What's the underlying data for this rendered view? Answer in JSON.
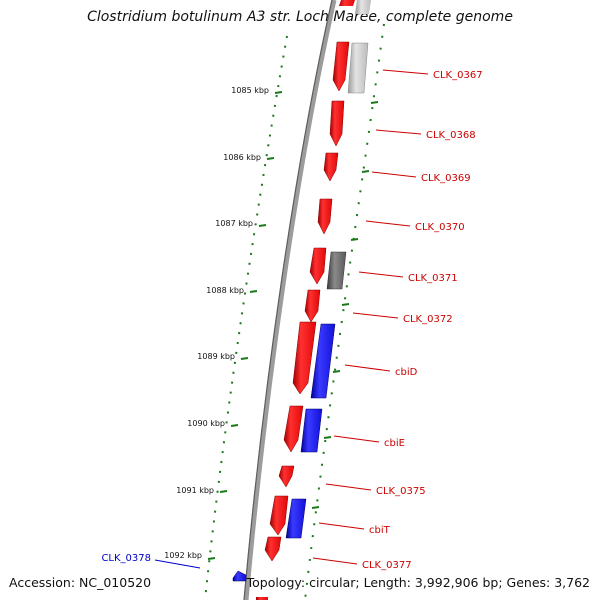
{
  "title": "Clostridium botulinum A3 str. Loch Maree, complete genome",
  "footer": {
    "accession": "Accession: NC_010520",
    "topology": "Topology: circular; Length: 3,992,906 bp; Genes: 3,762"
  },
  "colors": {
    "backbone": "#8a8a8a",
    "tick": "#1a7a1a",
    "forward_gene": "#e81010",
    "reverse_gene": "#1414e0",
    "pseudo_gene_light": "#c4c4c4",
    "pseudo_gene_dark": "#6a6a6a",
    "forward_label": "#cc0000",
    "reverse_label": "#0000cc"
  },
  "ruler": {
    "ticks": [
      {
        "kbp": 1085,
        "label": "1085 kbp"
      },
      {
        "kbp": 1086,
        "label": "1086 kbp"
      },
      {
        "kbp": 1087,
        "label": "1087 kbp"
      },
      {
        "kbp": 1088,
        "label": "1088 kbp"
      },
      {
        "kbp": 1089,
        "label": "1089 kbp"
      },
      {
        "kbp": 1090,
        "label": "1090 kbp"
      },
      {
        "kbp": 1091,
        "label": "1091 kbp"
      },
      {
        "kbp": 1092,
        "label": "1092 kbp"
      }
    ]
  },
  "genes": [
    {
      "name": "CLK_0367",
      "strand": "+"
    },
    {
      "name": "CLK_0368",
      "strand": "+"
    },
    {
      "name": "CLK_0369",
      "strand": "+"
    },
    {
      "name": "CLK_0370",
      "strand": "+"
    },
    {
      "name": "CLK_0371",
      "strand": "+"
    },
    {
      "name": "CLK_0372",
      "strand": "+"
    },
    {
      "name": "cbiD",
      "strand": "+"
    },
    {
      "name": "cbiE",
      "strand": "+"
    },
    {
      "name": "CLK_0375",
      "strand": "+"
    },
    {
      "name": "cbiT",
      "strand": "+"
    },
    {
      "name": "CLK_0377",
      "strand": "+"
    },
    {
      "name": "CLK_0378",
      "strand": "-"
    }
  ]
}
